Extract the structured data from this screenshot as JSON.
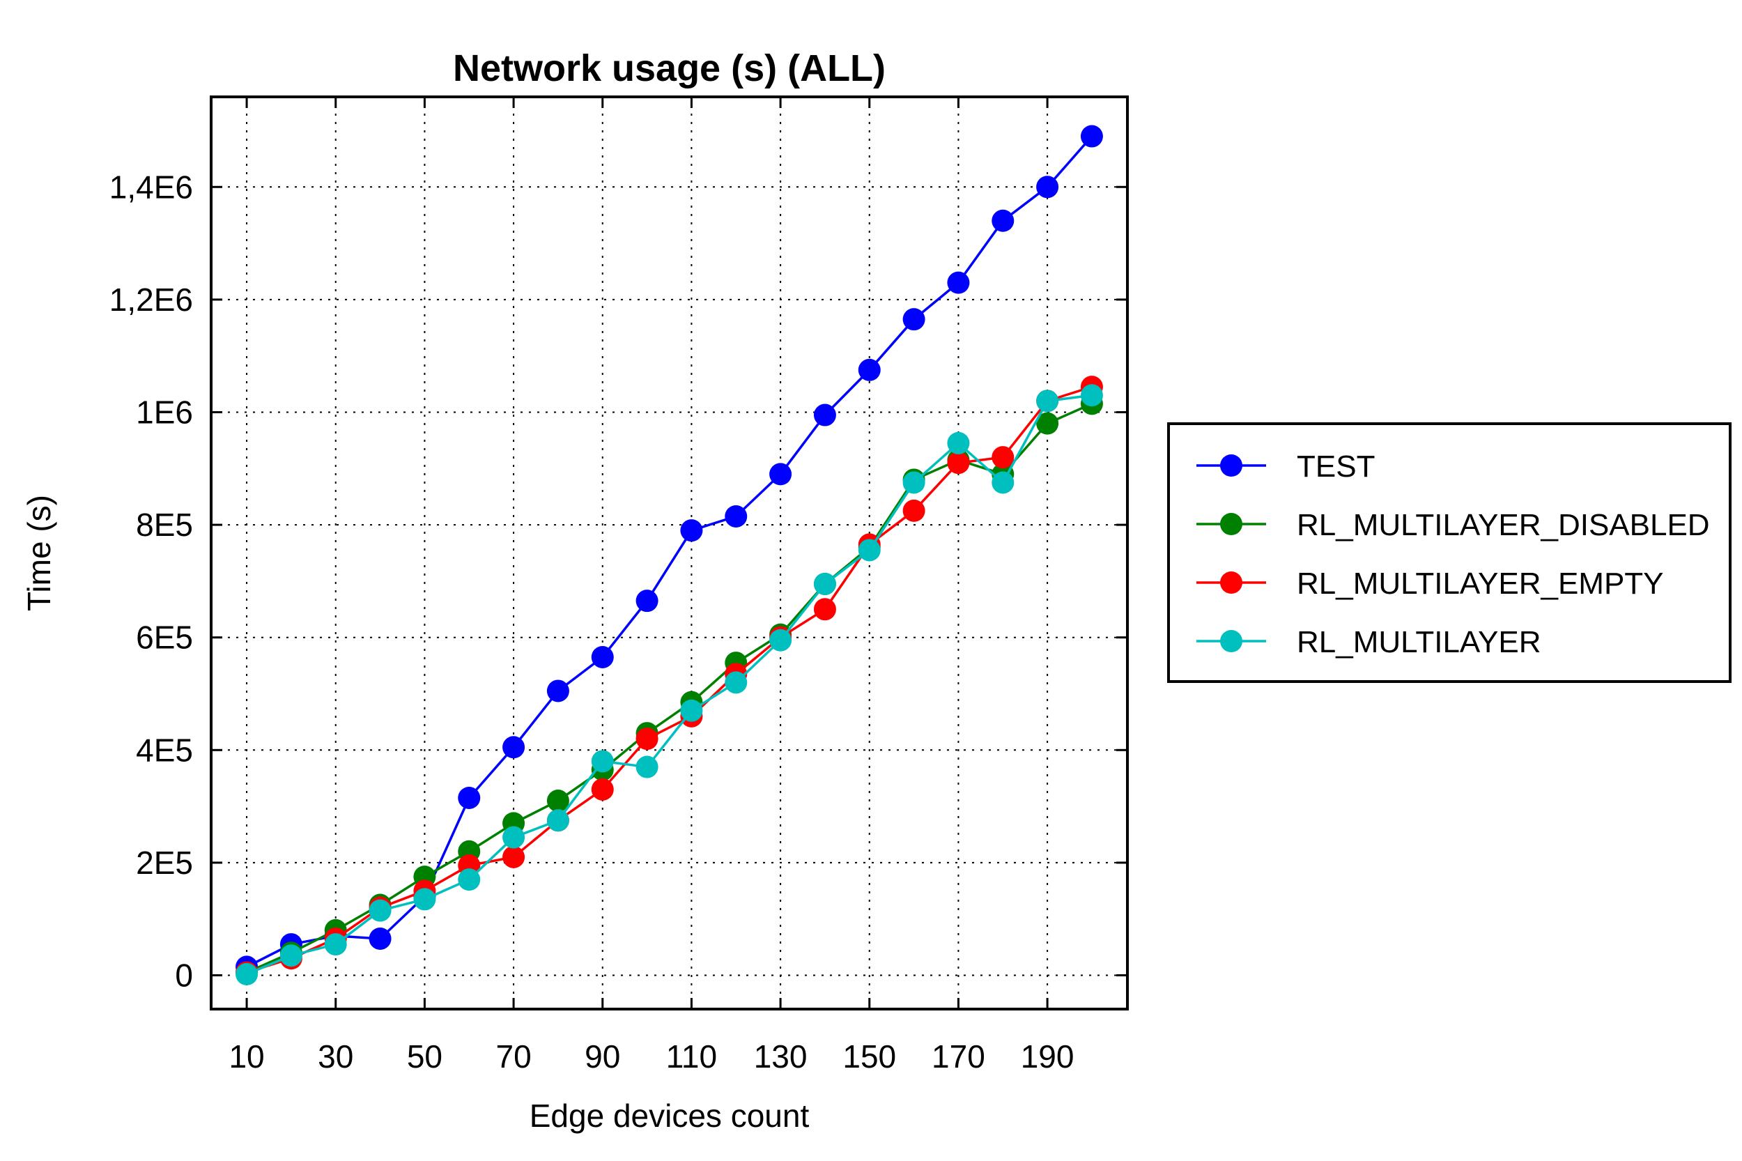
{
  "chart_data": {
    "type": "line",
    "title": "Network usage (s) (ALL)",
    "xlabel": "Edge devices count",
    "ylabel": "Time (s)",
    "xlim": [
      2,
      208
    ],
    "ylim": [
      -60000,
      1560000
    ],
    "x": [
      10,
      20,
      30,
      40,
      50,
      60,
      70,
      80,
      90,
      100,
      110,
      120,
      130,
      140,
      150,
      160,
      170,
      180,
      190,
      200
    ],
    "x_ticks": [
      {
        "value": 10,
        "label": "10"
      },
      {
        "value": 30,
        "label": "30"
      },
      {
        "value": 50,
        "label": "50"
      },
      {
        "value": 70,
        "label": "70"
      },
      {
        "value": 90,
        "label": "90"
      },
      {
        "value": 110,
        "label": "110"
      },
      {
        "value": 130,
        "label": "130"
      },
      {
        "value": 150,
        "label": "150"
      },
      {
        "value": 170,
        "label": "170"
      },
      {
        "value": 190,
        "label": "190"
      }
    ],
    "x_grid": [
      10,
      30,
      50,
      70,
      90,
      110,
      130,
      150,
      170,
      190
    ],
    "y_ticks": [
      {
        "value": 0,
        "label": "0"
      },
      {
        "value": 200000,
        "label": "2E5"
      },
      {
        "value": 400000,
        "label": "4E5"
      },
      {
        "value": 600000,
        "label": "6E5"
      },
      {
        "value": 800000,
        "label": "8E5"
      },
      {
        "value": 1000000,
        "label": "1E6"
      },
      {
        "value": 1200000,
        "label": "1,2E6"
      },
      {
        "value": 1400000,
        "label": "1,4E6"
      }
    ],
    "grid": true,
    "legend_position": "right",
    "series": [
      {
        "name": "TEST",
        "color": "#0000ff",
        "values": [
          15000,
          55000,
          70000,
          65000,
          140000,
          315000,
          405000,
          505000,
          565000,
          665000,
          790000,
          815000,
          890000,
          995000,
          1075000,
          1165000,
          1230000,
          1340000,
          1400000,
          1490000
        ]
      },
      {
        "name": "RL_MULTILAYER_DISABLED",
        "color": "#008000",
        "values": [
          5000,
          40000,
          80000,
          125000,
          175000,
          220000,
          270000,
          310000,
          365000,
          430000,
          485000,
          555000,
          605000,
          695000,
          760000,
          880000,
          915000,
          890000,
          980000,
          1015000
        ]
      },
      {
        "name": "RL_MULTILAYER_EMPTY",
        "color": "#ff0000",
        "values": [
          5000,
          30000,
          65000,
          120000,
          150000,
          195000,
          210000,
          275000,
          330000,
          420000,
          460000,
          535000,
          600000,
          650000,
          765000,
          825000,
          910000,
          920000,
          1020000,
          1045000
        ]
      },
      {
        "name": "RL_MULTILAYER",
        "color": "#00bfbf",
        "values": [
          2000,
          35000,
          55000,
          115000,
          135000,
          170000,
          245000,
          275000,
          380000,
          370000,
          470000,
          520000,
          595000,
          695000,
          755000,
          875000,
          945000,
          875000,
          1020000,
          1030000
        ]
      }
    ]
  }
}
